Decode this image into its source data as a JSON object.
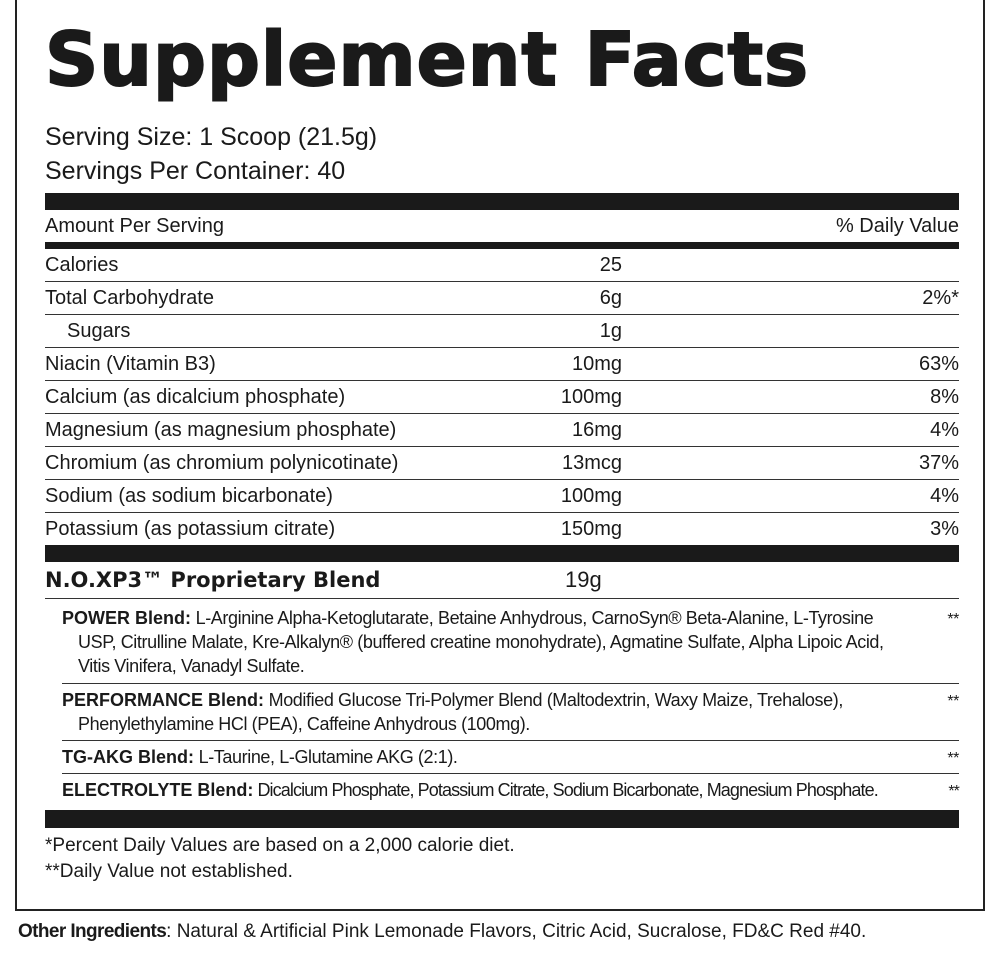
{
  "title": "Supplement Facts",
  "serving_size": "Serving Size: 1 Scoop (21.5g)",
  "servings_per_container": "Servings Per Container: 40",
  "header": {
    "amount": "Amount Per Serving",
    "dv": "% Daily Value"
  },
  "rows": [
    {
      "name": "Calories",
      "amount": "25",
      "dv": ""
    },
    {
      "name": "Total Carbohydrate",
      "amount": "6g",
      "dv": "2%*"
    },
    {
      "name": "Sugars",
      "amount": "1g",
      "dv": ""
    },
    {
      "name": "Niacin (Vitamin B3)",
      "amount": "10mg",
      "dv": "63%"
    },
    {
      "name": "Calcium (as dicalcium phosphate)",
      "amount": "100mg",
      "dv": "8%"
    },
    {
      "name": "Magnesium (as magnesium phosphate)",
      "amount": "16mg",
      "dv": "4%"
    },
    {
      "name": "Chromium (as chromium polynicotinate)",
      "amount": "13mcg",
      "dv": "37%"
    },
    {
      "name": "Sodium (as sodium bicarbonate)",
      "amount": "100mg",
      "dv": "4%"
    },
    {
      "name": "Potassium (as potassium citrate)",
      "amount": "150mg",
      "dv": "3%"
    }
  ],
  "proprietary": {
    "name": "N.O.XP3™ Proprietary Blend",
    "amount": "19g"
  },
  "blends": [
    {
      "label": "POWER Blend:",
      "text": " L-Arginine Alpha-Ketoglutarate, Betaine Anhydrous, CarnoSyn® Beta-Alanine, L-Tyrosine USP, Citrulline Malate, Kre-Alkalyn® (buffered creatine monohydrate), Agmatine Sulfate, Alpha Lipoic Acid, Vitis Vinifera, Vanadyl Sulfate.",
      "dv": "**"
    },
    {
      "label": "PERFORMANCE Blend:",
      "text": " Modified Glucose Tri-Polymer Blend (Maltodextrin, Waxy Maize, Trehalose), Phenylethylamine HCl (PEA), Caffeine Anhydrous (100mg).",
      "dv": "**"
    },
    {
      "label": "TG-AKG Blend:",
      "text": " L-Taurine, L-Glutamine AKG (2:1).",
      "dv": "**"
    },
    {
      "label": "ELECTROLYTE Blend:",
      "text": " Dicalcium Phosphate, Potassium Citrate, Sodium Bicarbonate, Magnesium Phosphate.",
      "dv": "**"
    }
  ],
  "footnotes": [
    "*Percent Daily Values are based on a 2,000 calorie diet.",
    "**Daily Value not established."
  ],
  "other_ingredients": {
    "label": "Other Ingredients",
    "text": ": Natural & Artificial Pink Lemonade Flavors, Citric Acid, Sucralose, FD&C Red #40."
  }
}
